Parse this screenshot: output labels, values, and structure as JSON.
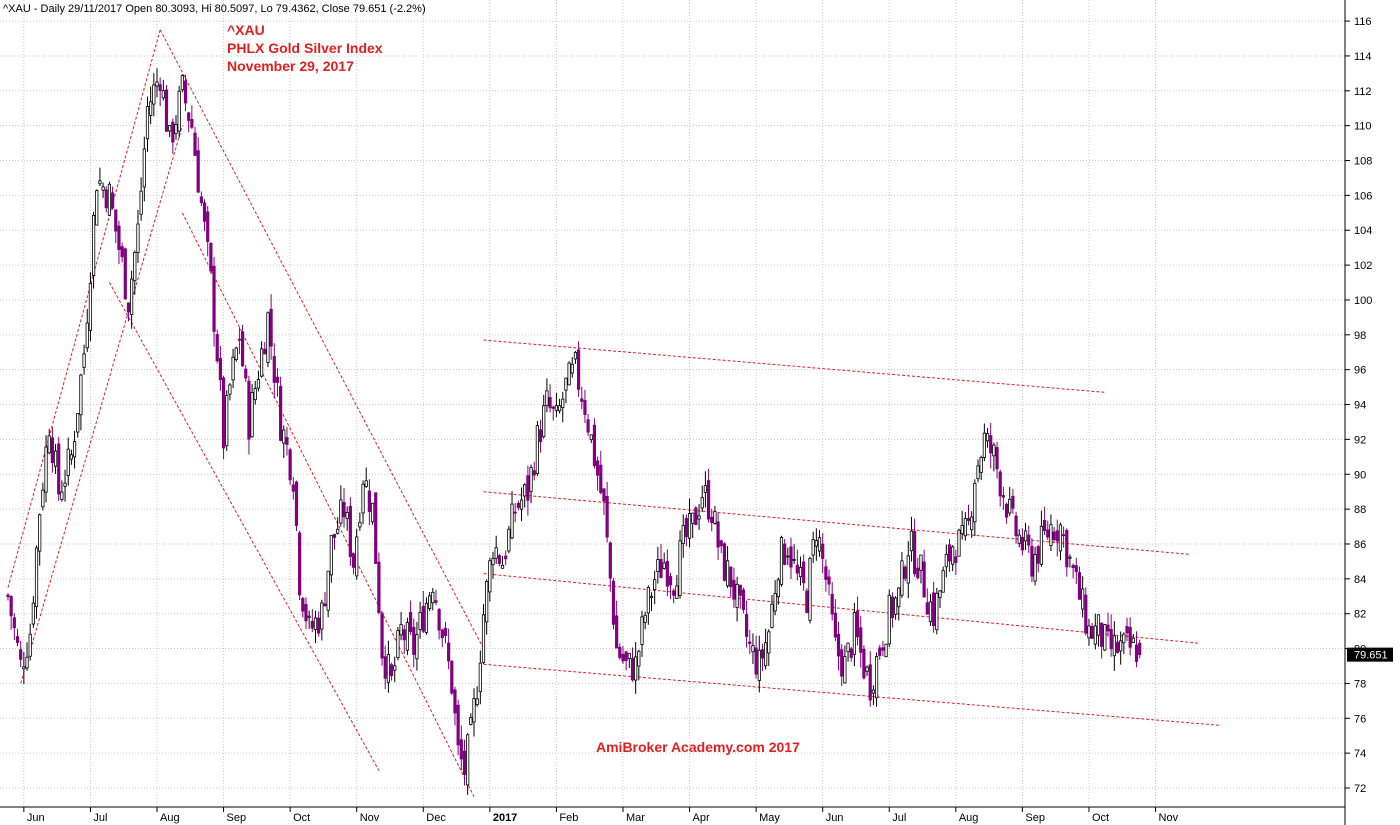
{
  "header": {
    "text": "^XAU - Daily 29/11/2017 Open 80.3093, Hi 80.5097, Lo 79.4362, Close 79.651 (-2.2%)"
  },
  "annotation": {
    "line1": "^XAU",
    "line2": "PHLX Gold Silver Index",
    "line3": "November 29, 2017"
  },
  "watermark": "AmiBroker Academy.com  2017",
  "last_price_label": "79.651",
  "colors": {
    "up_candle": "#000000",
    "down_candle": "#800080",
    "trendline": "#e02020",
    "grid": "#c8c8c8",
    "last_price_box": "#000000"
  },
  "chart_data": {
    "type": "candlestick",
    "title": "^XAU",
    "subtitle": "PHLX Gold Silver Index",
    "xlabel": "",
    "ylabel": "",
    "ylim": [
      71,
      117
    ],
    "yticks": [
      72,
      74,
      76,
      78,
      80,
      82,
      84,
      86,
      88,
      90,
      92,
      94,
      96,
      98,
      100,
      102,
      104,
      106,
      108,
      110,
      112,
      114,
      116
    ],
    "months": [
      {
        "label": "Jun",
        "bar": 5,
        "year": false
      },
      {
        "label": "Jul",
        "bar": 26,
        "year": false
      },
      {
        "label": "Aug",
        "bar": 47,
        "year": false
      },
      {
        "label": "Sep",
        "bar": 68,
        "year": false
      },
      {
        "label": "Oct",
        "bar": 89,
        "year": false
      },
      {
        "label": "Nov",
        "bar": 110,
        "year": false
      },
      {
        "label": "Dec",
        "bar": 131,
        "year": false
      },
      {
        "label": "2017",
        "bar": 152,
        "year": true
      },
      {
        "label": "Feb",
        "bar": 173,
        "year": false
      },
      {
        "label": "Mar",
        "bar": 194,
        "year": false
      },
      {
        "label": "Apr",
        "bar": 215,
        "year": false
      },
      {
        "label": "May",
        "bar": 236,
        "year": false
      },
      {
        "label": "Jun",
        "bar": 257,
        "year": false
      },
      {
        "label": "Jul",
        "bar": 278,
        "year": false
      },
      {
        "label": "Aug",
        "bar": 299,
        "year": false
      },
      {
        "label": "Sep",
        "bar": 320,
        "year": false
      },
      {
        "label": "Oct",
        "bar": 341,
        "year": false
      },
      {
        "label": "Nov",
        "bar": 362,
        "year": false
      }
    ],
    "path_anchors": [
      [
        0,
        83
      ],
      [
        4,
        79
      ],
      [
        7,
        81
      ],
      [
        10,
        88
      ],
      [
        13,
        93
      ],
      [
        16,
        89
      ],
      [
        20,
        91
      ],
      [
        24,
        97
      ],
      [
        28,
        107
      ],
      [
        32,
        106
      ],
      [
        35,
        103
      ],
      [
        38,
        100
      ],
      [
        41,
        104
      ],
      [
        44,
        111
      ],
      [
        48,
        113
      ],
      [
        51,
        109
      ],
      [
        55,
        112
      ],
      [
        58,
        110
      ],
      [
        60,
        107
      ],
      [
        62,
        104
      ],
      [
        64,
        101
      ],
      [
        66,
        97
      ],
      [
        68,
        92
      ],
      [
        70,
        95
      ],
      [
        73,
        98
      ],
      [
        76,
        93
      ],
      [
        79,
        96
      ],
      [
        82,
        99
      ],
      [
        86,
        93
      ],
      [
        90,
        90
      ],
      [
        92,
        84
      ],
      [
        95,
        81
      ],
      [
        99,
        82
      ],
      [
        102,
        86
      ],
      [
        106,
        88
      ],
      [
        109,
        85
      ],
      [
        112,
        90
      ],
      [
        115,
        88
      ],
      [
        118,
        80
      ],
      [
        121,
        78
      ],
      [
        124,
        81
      ],
      [
        128,
        80
      ],
      [
        131,
        82
      ],
      [
        134,
        84
      ],
      [
        137,
        81
      ],
      [
        140,
        78
      ],
      [
        142,
        74
      ],
      [
        144,
        73
      ],
      [
        146,
        75
      ],
      [
        148,
        78
      ],
      [
        150,
        82
      ],
      [
        153,
        86
      ],
      [
        156,
        85
      ],
      [
        160,
        88
      ],
      [
        164,
        89
      ],
      [
        167,
        92
      ],
      [
        170,
        94
      ],
      [
        173,
        93
      ],
      [
        176,
        95
      ],
      [
        179,
        96
      ],
      [
        182,
        94
      ],
      [
        185,
        91
      ],
      [
        188,
        88
      ],
      [
        190,
        84
      ],
      [
        192,
        80
      ],
      [
        195,
        79
      ],
      [
        198,
        79
      ],
      [
        201,
        82
      ],
      [
        204,
        84
      ],
      [
        207,
        85
      ],
      [
        210,
        84
      ],
      [
        213,
        86
      ],
      [
        216,
        87
      ],
      [
        219,
        89
      ],
      [
        222,
        88
      ],
      [
        225,
        85
      ],
      [
        228,
        84
      ],
      [
        231,
        82
      ],
      [
        234,
        80
      ],
      [
        237,
        79
      ],
      [
        240,
        81
      ],
      [
        243,
        85
      ],
      [
        246,
        86
      ],
      [
        249,
        84
      ],
      [
        252,
        83
      ],
      [
        255,
        87
      ],
      [
        258,
        84
      ],
      [
        261,
        80
      ],
      [
        264,
        79
      ],
      [
        267,
        81
      ],
      [
        270,
        79
      ],
      [
        272,
        78
      ],
      [
        275,
        80
      ],
      [
        278,
        82
      ],
      [
        281,
        83
      ],
      [
        284,
        86
      ],
      [
        287,
        85
      ],
      [
        290,
        83
      ],
      [
        292,
        82
      ],
      [
        295,
        84
      ],
      [
        298,
        86
      ],
      [
        301,
        86
      ],
      [
        303,
        87
      ],
      [
        305,
        90
      ],
      [
        308,
        92
      ],
      [
        311,
        91
      ],
      [
        314,
        89
      ],
      [
        317,
        87
      ],
      [
        320,
        86
      ],
      [
        323,
        85
      ],
      [
        326,
        86
      ],
      [
        329,
        87
      ],
      [
        332,
        87
      ],
      [
        335,
        85
      ],
      [
        338,
        83
      ],
      [
        341,
        81
      ],
      [
        344,
        81
      ],
      [
        347,
        80
      ],
      [
        350,
        80
      ],
      [
        353,
        80
      ],
      [
        356,
        80
      ]
    ],
    "last": {
      "open": 80.3093,
      "high": 80.5097,
      "low": 79.4362,
      "close": 79.651
    },
    "trendlines": [
      {
        "x1": 0,
        "y1": 83.5,
        "x2": 48,
        "y2": 115.5
      },
      {
        "x1": 4,
        "y1": 78,
        "x2": 55,
        "y2": 110
      },
      {
        "x1": 48,
        "y1": 115.5,
        "x2": 150,
        "y2": 80
      },
      {
        "x1": 32,
        "y1": 101,
        "x2": 117,
        "y2": 73
      },
      {
        "x1": 55,
        "y1": 105,
        "x2": 147,
        "y2": 71.5
      },
      {
        "x1": 150,
        "y1": 97.7,
        "x2": 346,
        "y2": 94.7
      },
      {
        "x1": 150,
        "y1": 89,
        "x2": 373,
        "y2": 85.4
      },
      {
        "x1": 150,
        "y1": 84.3,
        "x2": 376,
        "y2": 80.3
      },
      {
        "x1": 150,
        "y1": 79.1,
        "x2": 382,
        "y2": 75.6
      }
    ]
  }
}
